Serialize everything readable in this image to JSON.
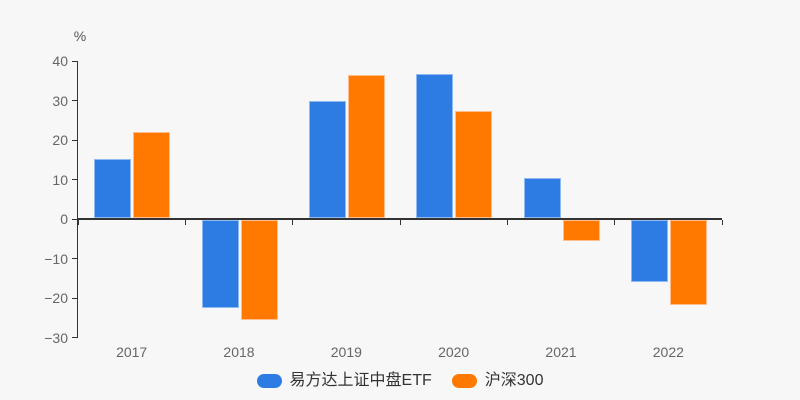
{
  "chart": {
    "background_color": "#f7f7f8",
    "axis_color": "#333333",
    "tick_label_color": "#666666",
    "legend_text_color": "#333333"
  },
  "chart_data": {
    "type": "bar",
    "title": "",
    "categories": [
      "2017",
      "2018",
      "2019",
      "2020",
      "2021",
      "2022"
    ],
    "series": [
      {
        "name": "易方达上证中盘ETF",
        "color": "#2d7ce4",
        "border_color": "#8fb9f0",
        "values": [
          15.0,
          -22.4,
          29.7,
          36.4,
          10.2,
          -15.7
        ]
      },
      {
        "name": "沪深300",
        "color": "#ff7800",
        "border_color": "#ffbe8f",
        "values": [
          21.8,
          -25.3,
          36.1,
          27.2,
          -5.2,
          -21.6
        ]
      }
    ],
    "xlabel": "",
    "ylabel": "%",
    "ylim": [
      -30,
      40
    ],
    "y_ticks": [
      40,
      30,
      20,
      10,
      0,
      -10,
      -20,
      -30
    ],
    "y_tick_labels": [
      "40",
      "30",
      "20",
      "10",
      "0",
      "−10",
      "−20",
      "−30"
    ],
    "grid": false,
    "legend_position": "bottom"
  }
}
